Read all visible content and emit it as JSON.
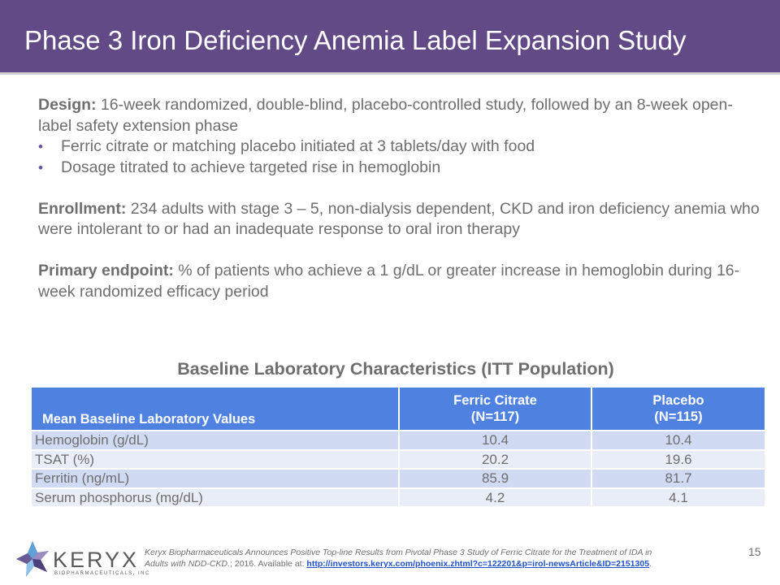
{
  "title": "Phase 3 Iron Deficiency Anemia Label Expansion Study",
  "design": {
    "label": "Design:",
    "text": " 16-week randomized, double-blind, placebo-controlled study, followed by an 8-week open-label safety extension phase",
    "bullets": [
      "Ferric citrate or matching placebo initiated at 3 tablets/day with food",
      "Dosage titrated to achieve targeted rise in hemoglobin"
    ]
  },
  "enrollment": {
    "label": "Enrollment:",
    "text": " 234 adults with stage 3 – 5, non-dialysis dependent, CKD and iron deficiency anemia who were intolerant to or had an inadequate response to oral iron therapy"
  },
  "primary_endpoint": {
    "label": "Primary endpoint:",
    "text": " % of patients who achieve a 1 g/dL or greater increase in hemoglobin during 16-week randomized efficacy period"
  },
  "table": {
    "title": "Baseline Laboratory Characteristics (ITT Population)",
    "headers": {
      "col1": "Mean Baseline Laboratory Values",
      "col2_line1": "Ferric Citrate",
      "col2_line2": "(N=117)",
      "col3_line1": "Placebo",
      "col3_line2": "(N=115)"
    },
    "rows": [
      {
        "label": "Hemoglobin (g/dL)",
        "ferric_citrate": "10.4",
        "placebo": "10.4"
      },
      {
        "label": "TSAT (%)",
        "ferric_citrate": "20.2",
        "placebo": "19.6"
      },
      {
        "label": "Ferritin (ng/mL)",
        "ferric_citrate": "85.9",
        "placebo": "81.7"
      },
      {
        "label": "Serum phosphorus (mg/dL)",
        "ferric_citrate": "4.2",
        "placebo": "4.1"
      }
    ]
  },
  "logo": {
    "name": "KERYX",
    "subtitle": "BIOPHARMACEUTICALS, INC",
    "icon": "star-logo-icon"
  },
  "citation": {
    "italic_text": "Keryx Biopharmaceuticals Announces Positive Top-line Results from Pivotal Phase 3 Study of Ferric Citrate for the Treatment of IDA in Adults with NDD-CKD.",
    "plain_text": "; 2016. Available at: ",
    "link_text": "http://investors.keryx.com/phoenix.zhtml?c=122201&p=irol-newsArticle&ID=2151305",
    "end": "."
  },
  "page_number": "15",
  "colors": {
    "title_bar": "#614a86",
    "table_header": "#4f81e0",
    "row_odd": "#d0daf2",
    "row_even": "#e8edf8",
    "body_text": "#6e6e6e",
    "bullet": "#6a53a0"
  }
}
